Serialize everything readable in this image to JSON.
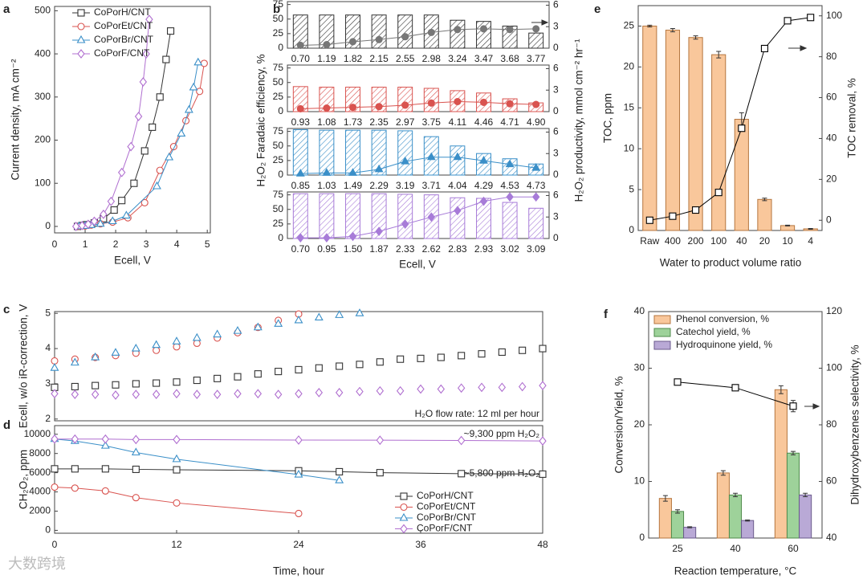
{
  "watermark": "大数跨境",
  "chart_data": [
    {
      "panel": "a",
      "type": "line",
      "xlabel": "Ecell, V",
      "ylabel": "Current density, mA cm⁻²",
      "xlim": [
        0,
        5.1
      ],
      "xticks": [
        0,
        1,
        2,
        3,
        4,
        5
      ],
      "ylim": [
        -15,
        510
      ],
      "yticks": [
        0,
        100,
        200,
        300,
        400,
        500
      ],
      "legend": "upper left",
      "series": [
        {
          "name": "CoPorH/CNT",
          "color": "#333333",
          "marker": "square",
          "x": [
            0.75,
            0.9,
            1.05,
            1.3,
            1.6,
            1.95,
            2.2,
            2.6,
            2.95,
            3.2,
            3.45,
            3.65,
            3.8
          ],
          "values": [
            0,
            2,
            4,
            8,
            18,
            38,
            60,
            100,
            175,
            230,
            300,
            387,
            453
          ]
        },
        {
          "name": "CoPorEt/CNT",
          "color": "#d9534f",
          "marker": "circle",
          "x": [
            0.8,
            1.0,
            1.2,
            1.5,
            1.9,
            2.4,
            2.95,
            3.45,
            3.9,
            4.3,
            4.75,
            4.9
          ],
          "values": [
            0,
            1,
            3,
            6,
            10,
            20,
            55,
            130,
            185,
            245,
            313,
            378
          ]
        },
        {
          "name": "CoPorBr/CNT",
          "color": "#3a8fc8",
          "marker": "triangle",
          "x": [
            0.8,
            1.0,
            1.2,
            1.5,
            1.9,
            2.35,
            3.35,
            3.75,
            4.15,
            4.4,
            4.55,
            4.7
          ],
          "values": [
            0,
            1,
            3,
            6,
            12,
            25,
            93,
            160,
            215,
            270,
            322,
            380
          ]
        },
        {
          "name": "CoPorF/CNT",
          "color": "#b06fd0",
          "marker": "diamond",
          "x": [
            0.7,
            0.9,
            1.1,
            1.3,
            1.6,
            1.85,
            2.2,
            2.5,
            2.75,
            2.9,
            3.0,
            3.1
          ],
          "values": [
            0,
            2,
            5,
            12,
            28,
            58,
            125,
            185,
            255,
            335,
            400,
            480
          ]
        }
      ]
    },
    {
      "panel": "b",
      "type": "bar",
      "hatch": true,
      "ylabel": "H₂O₂ Faradaic efficiency, %",
      "y2label": "H₂O₂ productivity, mmol cm⁻² hr⁻¹",
      "categories": [
        "0.70",
        "1.19",
        "1.82",
        "2.15",
        "2.55",
        "2.98",
        "3.24",
        "3.47",
        "3.68",
        "3.77"
      ],
      "ylim": [
        0,
        80
      ],
      "yticks": [
        0,
        25,
        50,
        75
      ],
      "y2lim": [
        0,
        6.5
      ],
      "y2ticks": [
        0,
        3,
        6
      ],
      "series": [
        {
          "kind": "bar",
          "color": "#333333",
          "values": [
            57,
            57,
            57,
            57,
            57,
            57,
            48,
            46,
            38,
            26
          ]
        },
        {
          "kind": "line",
          "axis": "y2",
          "color": "#777777",
          "marker": "circle",
          "marker_filled": true,
          "values": [
            0.4,
            0.5,
            0.9,
            1.2,
            1.6,
            2.2,
            2.6,
            2.7,
            2.6,
            2.7
          ]
        }
      ]
    },
    {
      "type": "bar",
      "hatch": true,
      "categories": [
        "0.93",
        "1.08",
        "1.73",
        "2.35",
        "2.97",
        "3.75",
        "4.11",
        "4.46",
        "4.71",
        "4.90"
      ],
      "ylim": [
        0,
        80
      ],
      "yticks": [
        0,
        25,
        50,
        75
      ],
      "y2lim": [
        0,
        6.5
      ],
      "y2ticks": [
        0,
        3,
        6
      ],
      "series": [
        {
          "kind": "bar",
          "color": "#d9534f",
          "values": [
            43,
            42,
            42,
            42,
            42,
            40,
            36,
            32,
            22,
            15
          ]
        },
        {
          "kind": "line",
          "axis": "y2",
          "color": "#d9534f",
          "marker": "circle",
          "marker_filled": true,
          "values": [
            0.4,
            0.5,
            0.6,
            0.7,
            0.9,
            1.2,
            1.4,
            1.3,
            1.1,
            1.0
          ]
        }
      ]
    },
    {
      "type": "bar",
      "hatch": true,
      "categories": [
        "0.85",
        "1.03",
        "1.49",
        "2.29",
        "3.19",
        "3.71",
        "4.04",
        "4.29",
        "4.53",
        "4.73"
      ],
      "ylim": [
        0,
        80
      ],
      "yticks": [
        0,
        25,
        50,
        75
      ],
      "y2lim": [
        0,
        6.5
      ],
      "y2ticks": [
        0,
        3,
        6
      ],
      "series": [
        {
          "kind": "bar",
          "color": "#3a8fc8",
          "values": [
            78,
            77,
            77,
            77,
            76,
            66,
            50,
            37,
            28,
            19
          ]
        },
        {
          "kind": "line",
          "axis": "y2",
          "color": "#3a8fc8",
          "marker": "triangle",
          "marker_filled": true,
          "values": [
            0.2,
            0.3,
            0.3,
            0.8,
            1.9,
            2.5,
            2.5,
            2.0,
            1.5,
            1.0
          ]
        }
      ]
    },
    {
      "type": "bar",
      "hatch": true,
      "xlabel": "Ecell, V",
      "categories": [
        "0.70",
        "0.95",
        "1.50",
        "1.87",
        "2.33",
        "2.62",
        "2.83",
        "2.93",
        "3.02",
        "3.09"
      ],
      "ylim": [
        0,
        80
      ],
      "yticks": [
        0,
        25,
        50,
        75
      ],
      "y2lim": [
        0,
        6.5
      ],
      "y2ticks": [
        0,
        3,
        6
      ],
      "series": [
        {
          "kind": "bar",
          "color": "#a77bd8",
          "values": [
            77,
            77,
            77,
            77,
            76,
            75,
            70,
            69,
            62,
            52
          ]
        },
        {
          "kind": "line",
          "axis": "y2",
          "color": "#a77bd8",
          "marker": "diamond",
          "marker_filled": true,
          "values": [
            0.1,
            0.1,
            0.3,
            1.0,
            2.0,
            3.0,
            3.9,
            5.2,
            5.8,
            5.8
          ]
        }
      ]
    },
    {
      "panel": "e",
      "type": "bar",
      "xlabel": "Water to product volume ratio",
      "ylabel": "TOC, ppm",
      "y2label": "TOC removal, %",
      "categories": [
        "Raw",
        "400",
        "200",
        "100",
        "40",
        "20",
        "10",
        "4"
      ],
      "ylim": [
        0,
        27.5
      ],
      "yticks": [
        0,
        5,
        10,
        15,
        20,
        25
      ],
      "y2lim": [
        -5,
        105
      ],
      "y2ticks": [
        0,
        20,
        40,
        60,
        80,
        100
      ],
      "series": [
        {
          "kind": "bar",
          "color": "#f9c79b",
          "edge": "#b5763f",
          "values": [
            25,
            24.5,
            23.6,
            21.5,
            13.6,
            3.8,
            0.6,
            0.2
          ],
          "errors": [
            0.1,
            0.2,
            0.2,
            0.4,
            0.8,
            0.15,
            0.05,
            0.05
          ]
        },
        {
          "kind": "line",
          "axis": "y2",
          "color": "#000000",
          "marker": "square",
          "values": [
            0,
            2,
            5,
            13.6,
            45,
            84,
            97.6,
            99.2
          ]
        }
      ]
    },
    {
      "panel": "c",
      "type": "line",
      "lines": false,
      "ylabel": "Ecell, w/o iR-correction, V",
      "xlim": [
        0,
        48
      ],
      "ylim": [
        1.95,
        5.05
      ],
      "yticks": [
        2,
        3,
        4,
        5
      ],
      "annotations": [
        "H₂O flow rate: 12 ml per hour"
      ],
      "series": [
        {
          "color": "#333333",
          "marker": "square",
          "x": [
            0,
            2,
            4,
            6,
            8,
            10,
            12,
            14,
            16,
            18,
            20,
            22,
            24,
            26,
            28,
            30,
            32,
            34,
            36,
            38,
            40,
            42,
            44,
            46,
            48
          ],
          "values": [
            2.9,
            2.92,
            2.95,
            2.97,
            3.0,
            3.02,
            3.05,
            3.1,
            3.15,
            3.2,
            3.28,
            3.35,
            3.4,
            3.45,
            3.5,
            3.55,
            3.62,
            3.7,
            3.72,
            3.75,
            3.8,
            3.85,
            3.9,
            3.95,
            4.0
          ]
        },
        {
          "color": "#d9534f",
          "marker": "circle",
          "x": [
            0,
            2,
            4,
            6,
            8,
            10,
            12,
            14,
            16,
            18,
            20,
            22,
            24
          ],
          "values": [
            3.65,
            3.7,
            3.75,
            3.8,
            3.87,
            3.95,
            4.05,
            4.15,
            4.3,
            4.45,
            4.6,
            4.8,
            4.98
          ]
        },
        {
          "color": "#3a8fc8",
          "marker": "triangle",
          "x": [
            0,
            2,
            4,
            6,
            8,
            10,
            12,
            14,
            16,
            18,
            20,
            22,
            24,
            26,
            28,
            30
          ],
          "values": [
            3.45,
            3.6,
            3.75,
            3.88,
            4.0,
            4.1,
            4.2,
            4.3,
            4.4,
            4.5,
            4.6,
            4.7,
            4.8,
            4.88,
            4.95,
            5.0
          ]
        },
        {
          "color": "#b06fd0",
          "marker": "diamond",
          "x": [
            0,
            2,
            4,
            6,
            8,
            10,
            12,
            14,
            16,
            18,
            20,
            22,
            24,
            26,
            28,
            30,
            32,
            34,
            36,
            38,
            40,
            42,
            44,
            46,
            48
          ],
          "values": [
            2.72,
            2.7,
            2.7,
            2.68,
            2.7,
            2.7,
            2.72,
            2.7,
            2.7,
            2.72,
            2.72,
            2.7,
            2.72,
            2.75,
            2.75,
            2.78,
            2.8,
            2.8,
            2.85,
            2.85,
            2.88,
            2.9,
            2.9,
            2.92,
            2.95
          ]
        }
      ]
    },
    {
      "panel": "d",
      "type": "line",
      "xlabel": "Time, hour",
      "ylabel": "CH₂O₂, ppm",
      "xlim": [
        0,
        48
      ],
      "xticks": [
        0,
        12,
        24,
        36,
        48
      ],
      "ylim": [
        -300,
        10900
      ],
      "yticks": [
        0,
        2000,
        4000,
        6000,
        8000,
        10000
      ],
      "legend": "lower right",
      "annotations": [
        "~9,300 ppm H₂O₂",
        "~5,800 ppm H₂O₂"
      ],
      "series": [
        {
          "name": "CoPorH/CNT",
          "color": "#333333",
          "marker": "square",
          "x": [
            0,
            2,
            5,
            8,
            12,
            24,
            28,
            32,
            40,
            48
          ],
          "values": [
            6400,
            6400,
            6400,
            6350,
            6300,
            6200,
            6100,
            6000,
            5900,
            5850
          ]
        },
        {
          "name": "CoPorEt/CNT",
          "color": "#d9534f",
          "marker": "circle",
          "x": [
            0,
            2,
            5,
            8,
            12,
            24
          ],
          "values": [
            4500,
            4400,
            4100,
            3400,
            2850,
            1750
          ]
        },
        {
          "name": "CoPorBr/CNT",
          "color": "#3a8fc8",
          "marker": "triangle",
          "x": [
            0,
            2,
            5,
            8,
            12,
            24,
            28
          ],
          "values": [
            9500,
            9300,
            8800,
            8100,
            7400,
            5800,
            5200
          ]
        },
        {
          "name": "CoPorF/CNT",
          "color": "#b06fd0",
          "marker": "diamond",
          "x": [
            0,
            2,
            5,
            8,
            12,
            24,
            32,
            40,
            48
          ],
          "values": [
            9500,
            9500,
            9500,
            9450,
            9450,
            9400,
            9380,
            9350,
            9300
          ]
        }
      ]
    },
    {
      "panel": "f",
      "type": "bar",
      "xlabel": "Reaction temperature, °C",
      "ylabel": "Conversion/Yield, %",
      "y2label": "Dihydroxybenzenes selectivity, %",
      "categories": [
        "25",
        "40",
        "60"
      ],
      "ylim": [
        0,
        40
      ],
      "yticks": [
        0,
        10,
        20,
        30,
        40
      ],
      "y2lim": [
        40,
        120
      ],
      "y2ticks": [
        40,
        60,
        80,
        100,
        120
      ],
      "legend": "upper left",
      "series": [
        {
          "kind": "bar",
          "name": "Phenol conversion, %",
          "color": "#f9c79b",
          "edge": "#b5763f",
          "values": [
            7,
            11.5,
            26.2
          ],
          "errors": [
            0.5,
            0.4,
            0.7
          ]
        },
        {
          "kind": "bar",
          "name": "Catechol yield, %",
          "color": "#9ed29a",
          "edge": "#4f8a4b",
          "values": [
            4.7,
            7.6,
            15
          ],
          "errors": [
            0.3,
            0.3,
            0.3
          ]
        },
        {
          "kind": "bar",
          "name": "Hydroquinone yield, %",
          "color": "#b9a9d6",
          "edge": "#6a5a8c",
          "values": [
            1.9,
            3.1,
            7.6
          ],
          "errors": [
            0.1,
            0.1,
            0.3
          ]
        },
        {
          "kind": "line",
          "axis": "y2",
          "color": "#000000",
          "marker": "square",
          "values": [
            95.1,
            93.1,
            86.6
          ],
          "errors": [
            0.8,
            0.8,
            2
          ]
        }
      ]
    }
  ]
}
